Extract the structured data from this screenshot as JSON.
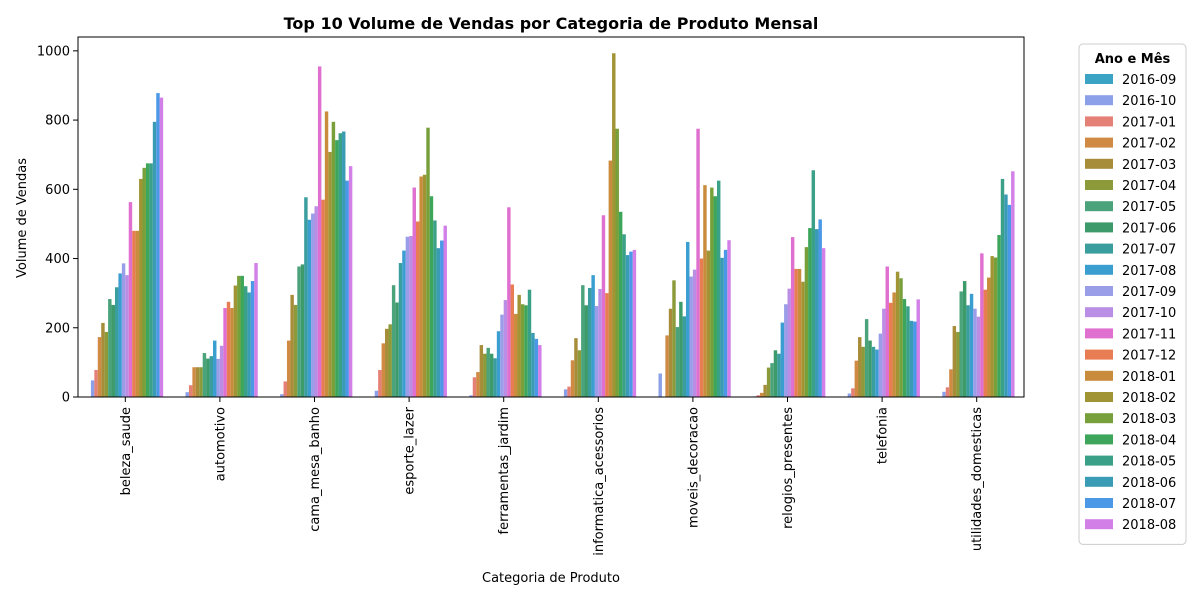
{
  "chart_data": {
    "type": "bar",
    "title": "Top 10 Volume de Vendas por Categoria de Produto Mensal",
    "xlabel": "Categoria de Produto",
    "ylabel": "Volume de Vendas",
    "ylim": [
      0,
      1040
    ],
    "yticks": [
      0,
      200,
      400,
      600,
      800,
      1000
    ],
    "grid": false,
    "legend_title": "Ano e Mês",
    "legend_position": "outside-right",
    "categories": [
      "beleza_saude",
      "automotivo",
      "cama_mesa_banho",
      "esporte_lazer",
      "ferramentas_jardim",
      "informatica_acessorios",
      "moveis_decoracao",
      "relogios_presentes",
      "telefonia",
      "utilidades_domesticas"
    ],
    "series": [
      {
        "name": "2016-09",
        "color": "#3ba3c4",
        "values": [
          0,
          0,
          0,
          0,
          0,
          0,
          0,
          0,
          0,
          0
        ]
      },
      {
        "name": "2016-10",
        "color": "#8ba0e8",
        "values": [
          48,
          14,
          8,
          18,
          5,
          22,
          68,
          2,
          10,
          15
        ]
      },
      {
        "name": "2017-01",
        "color": "#e58077",
        "values": [
          78,
          34,
          45,
          78,
          57,
          30,
          0,
          5,
          25,
          28
        ]
      },
      {
        "name": "2017-02",
        "color": "#d08a44",
        "values": [
          173,
          86,
          163,
          155,
          72,
          106,
          178,
          12,
          105,
          80
        ]
      },
      {
        "name": "2017-03",
        "color": "#a78c3a",
        "values": [
          214,
          86,
          295,
          197,
          150,
          170,
          255,
          35,
          173,
          205
        ]
      },
      {
        "name": "2017-04",
        "color": "#8c9a3a",
        "values": [
          188,
          86,
          266,
          210,
          125,
          135,
          337,
          85,
          145,
          188
        ]
      },
      {
        "name": "2017-05",
        "color": "#4aa37a",
        "values": [
          283,
          127,
          377,
          323,
          142,
          323,
          202,
          98,
          225,
          305
        ]
      },
      {
        "name": "2017-06",
        "color": "#3d9a6a",
        "values": [
          266,
          111,
          383,
          273,
          125,
          265,
          275,
          135,
          163,
          335
        ]
      },
      {
        "name": "2017-07",
        "color": "#3a9e9e",
        "values": [
          317,
          118,
          577,
          387,
          112,
          315,
          233,
          125,
          145,
          265
        ]
      },
      {
        "name": "2017-08",
        "color": "#3a9ed0",
        "values": [
          357,
          163,
          512,
          423,
          190,
          352,
          448,
          215,
          137,
          298
        ]
      },
      {
        "name": "2017-09",
        "color": "#9a9ee8",
        "values": [
          386,
          110,
          530,
          463,
          238,
          263,
          348,
          268,
          183,
          255
        ]
      },
      {
        "name": "2017-10",
        "color": "#bb8ee6",
        "values": [
          352,
          148,
          551,
          465,
          280,
          312,
          368,
          313,
          255,
          232
        ]
      },
      {
        "name": "2017-11",
        "color": "#e070d0",
        "values": [
          563,
          257,
          955,
          605,
          548,
          525,
          775,
          462,
          377,
          415
        ]
      },
      {
        "name": "2017-12",
        "color": "#e87c52",
        "values": [
          480,
          275,
          570,
          507,
          325,
          300,
          400,
          370,
          272,
          310
        ]
      },
      {
        "name": "2018-01",
        "color": "#c98c3c",
        "values": [
          480,
          257,
          825,
          637,
          240,
          683,
          612,
          370,
          302,
          345
        ]
      },
      {
        "name": "2018-02",
        "color": "#a09434",
        "values": [
          630,
          322,
          708,
          642,
          295,
          993,
          423,
          333,
          362,
          407
        ]
      },
      {
        "name": "2018-03",
        "color": "#78a03a",
        "values": [
          662,
          350,
          795,
          778,
          268,
          775,
          605,
          433,
          343,
          403
        ]
      },
      {
        "name": "2018-04",
        "color": "#3ea65a",
        "values": [
          675,
          350,
          742,
          580,
          265,
          535,
          580,
          488,
          283,
          468
        ]
      },
      {
        "name": "2018-05",
        "color": "#3aa088",
        "values": [
          675,
          320,
          762,
          510,
          310,
          470,
          625,
          655,
          262,
          630
        ]
      },
      {
        "name": "2018-06",
        "color": "#3a9cb4",
        "values": [
          795,
          302,
          767,
          430,
          185,
          410,
          402,
          485,
          220,
          585
        ]
      },
      {
        "name": "2018-07",
        "color": "#4a98e6",
        "values": [
          878,
          335,
          625,
          452,
          168,
          420,
          425,
          513,
          218,
          555
        ]
      },
      {
        "name": "2018-08",
        "color": "#d280e8",
        "values": [
          865,
          387,
          667,
          495,
          150,
          425,
          453,
          430,
          282,
          652
        ]
      }
    ]
  }
}
